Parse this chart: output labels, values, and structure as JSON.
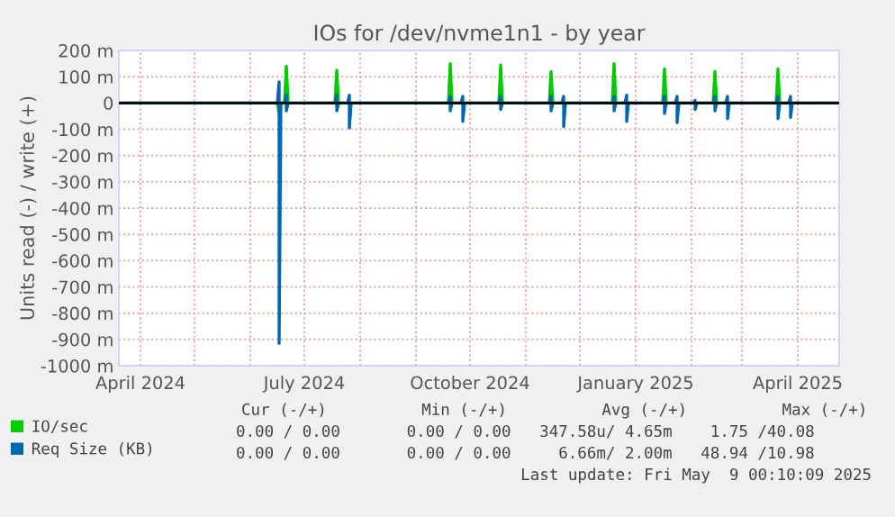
{
  "chart_data": {
    "type": "line",
    "title": "IOs for /dev/nvme1n1 - by year",
    "ylabel": "Units read (-) / write (+)",
    "xlim": [
      "2024-03-20",
      "2025-04-24"
    ],
    "ylim": [
      -1000,
      200
    ],
    "xticks": [
      {
        "value": "2024-04-01",
        "label": "April 2024"
      },
      {
        "value": "2024-05-01",
        "label": null
      },
      {
        "value": "2024-06-01",
        "label": null
      },
      {
        "value": "2024-07-01",
        "label": "July 2024"
      },
      {
        "value": "2024-08-01",
        "label": null
      },
      {
        "value": "2024-09-01",
        "label": null
      },
      {
        "value": "2024-10-01",
        "label": "October 2024"
      },
      {
        "value": "2024-11-01",
        "label": null
      },
      {
        "value": "2024-12-01",
        "label": null
      },
      {
        "value": "2025-01-01",
        "label": "January 2025"
      },
      {
        "value": "2025-02-01",
        "label": null
      },
      {
        "value": "2025-03-01",
        "label": null
      },
      {
        "value": "2025-04-01",
        "label": "April 2025"
      }
    ],
    "yticks": [
      {
        "value": 200,
        "label": "200 m"
      },
      {
        "value": 100,
        "label": "100 m"
      },
      0,
      {
        "value": -100,
        "label": "-100 m"
      },
      {
        "value": -200,
        "label": "-200 m"
      },
      {
        "value": -300,
        "label": "-300 m"
      },
      {
        "value": -400,
        "label": "-400 m"
      },
      {
        "value": -500,
        "label": "-500 m"
      },
      {
        "value": -600,
        "label": "-600 m"
      },
      {
        "value": -700,
        "label": "-700 m"
      },
      {
        "value": -800,
        "label": "-800 m"
      },
      {
        "value": -900,
        "label": "-900 m"
      },
      {
        "value": -1000,
        "label": "-1000 m"
      }
    ],
    "grid": true,
    "legend": "bottom",
    "ref_lines": [
      {
        "axis": "y",
        "value": 0,
        "color": "#000000"
      }
    ],
    "series": [
      {
        "name": "IO/sec",
        "color": "#00cc00",
        "x": [
          "2024-03-20",
          "2024-06-16",
          "2024-06-17",
          "2024-06-18",
          "2024-06-20",
          "2024-06-21",
          "2024-06-22",
          "2024-07-18",
          "2024-07-19",
          "2024-07-20",
          "2024-09-19",
          "2024-09-20",
          "2024-09-21",
          "2024-10-17",
          "2024-10-18",
          "2024-10-19",
          "2024-11-14",
          "2024-11-15",
          "2024-11-16",
          "2024-12-19",
          "2024-12-20",
          "2024-12-21",
          "2025-01-16",
          "2025-01-17",
          "2025-01-18",
          "2025-02-13",
          "2025-02-14",
          "2025-02-15",
          "2025-03-20",
          "2025-03-21",
          "2025-03-22",
          "2025-04-24"
        ],
        "values": [
          0,
          0,
          -40,
          0,
          0,
          140,
          0,
          0,
          125,
          0,
          0,
          150,
          0,
          0,
          145,
          0,
          0,
          120,
          0,
          0,
          150,
          0,
          0,
          130,
          0,
          0,
          120,
          0,
          0,
          130,
          0,
          0
        ]
      },
      {
        "name": "Req Size (KB)",
        "color": "#0066b3",
        "x": [
          "2024-03-20",
          "2024-06-16",
          "2024-06-17",
          "2024-06-17",
          "2024-06-18",
          "2024-06-20",
          "2024-06-21",
          "2024-06-21",
          "2024-06-22",
          "2024-07-18",
          "2024-07-19",
          "2024-07-19",
          "2024-07-20",
          "2024-07-25",
          "2024-07-26",
          "2024-07-26",
          "2024-07-27",
          "2024-09-19",
          "2024-09-20",
          "2024-09-20",
          "2024-09-21",
          "2024-09-26",
          "2024-09-27",
          "2024-09-27",
          "2024-09-28",
          "2024-10-17",
          "2024-10-18",
          "2024-10-18",
          "2024-10-19",
          "2024-11-14",
          "2024-11-15",
          "2024-11-15",
          "2024-11-16",
          "2024-11-21",
          "2024-11-22",
          "2024-11-22",
          "2024-11-23",
          "2024-12-19",
          "2024-12-20",
          "2024-12-20",
          "2024-12-21",
          "2024-12-26",
          "2024-12-27",
          "2024-12-27",
          "2024-12-28",
          "2025-01-16",
          "2025-01-17",
          "2025-01-17",
          "2025-01-18",
          "2025-01-23",
          "2025-01-24",
          "2025-01-24",
          "2025-01-25",
          "2025-02-02",
          "2025-02-03",
          "2025-02-03",
          "2025-02-04",
          "2025-02-13",
          "2025-02-14",
          "2025-02-14",
          "2025-02-15",
          "2025-02-20",
          "2025-02-21",
          "2025-02-21",
          "2025-02-22",
          "2025-03-20",
          "2025-03-21",
          "2025-03-21",
          "2025-03-22",
          "2025-03-27",
          "2025-03-28",
          "2025-03-28",
          "2025-03-29",
          "2025-04-24"
        ],
        "values": [
          0,
          0,
          80,
          -915,
          0,
          0,
          30,
          -30,
          0,
          0,
          30,
          -30,
          0,
          0,
          30,
          -95,
          0,
          0,
          25,
          -30,
          0,
          0,
          25,
          -70,
          0,
          0,
          25,
          -25,
          0,
          0,
          25,
          -30,
          0,
          0,
          25,
          -90,
          0,
          0,
          25,
          -30,
          0,
          0,
          30,
          -70,
          0,
          0,
          25,
          -40,
          0,
          0,
          25,
          -75,
          0,
          0,
          10,
          -25,
          0,
          0,
          25,
          -30,
          0,
          0,
          25,
          -60,
          0,
          0,
          25,
          -60,
          0,
          0,
          25,
          -55,
          0,
          0
        ]
      }
    ],
    "annotations": [
      "Cur (-/+)          Min (-/+)          Avg (-/+)          Max (-/+)",
      "0.00 / 0.00       0.00 / 0.00   347.58u/ 4.65m    1.75 /40.08",
      "0.00 / 0.00       0.00 / 0.00     6.66m/ 2.00m   48.94 /10.98",
      "Last update: Fri May  9 00:10:09 2025"
    ]
  }
}
